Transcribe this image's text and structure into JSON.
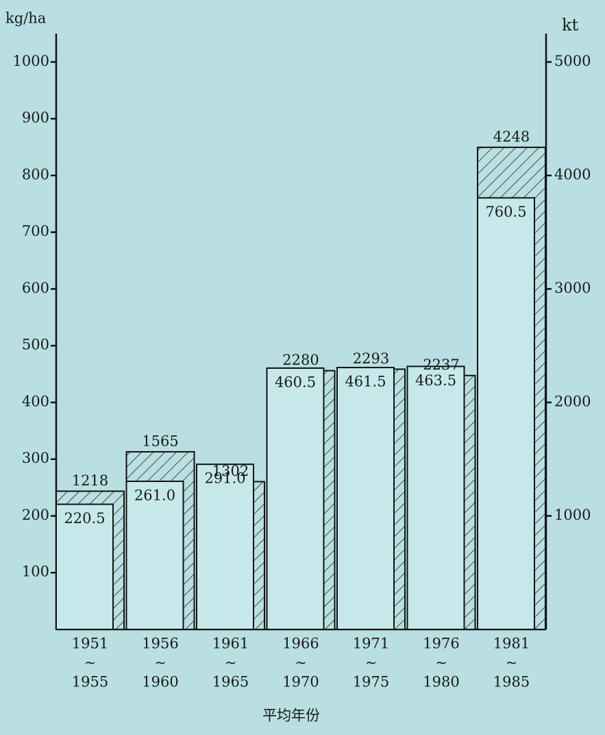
{
  "chart_data": {
    "type": "bar",
    "y_label": "kg/ha",
    "y2_label": "kt",
    "x_label": "平均年份",
    "categories": [
      [
        "1951",
        "~",
        "1955"
      ],
      [
        "1956",
        "~",
        "1960"
      ],
      [
        "1961",
        "~",
        "1965"
      ],
      [
        "1966",
        "~",
        "1970"
      ],
      [
        "1971",
        "~",
        "1975"
      ],
      [
        "1976",
        "~",
        "1980"
      ],
      [
        "1981",
        "~",
        "1985"
      ]
    ],
    "series": [
      {
        "color": "#c6e8eb",
        "values": [
          220.5,
          261.0,
          291.0,
          460.5,
          461.5,
          463.5,
          760.5
        ],
        "value_labels": [
          "220.5",
          "261.0",
          "291.0",
          "460.5",
          "461.5",
          "463.5",
          "760.5"
        ]
      },
      {
        "color": "#222222",
        "axis": "y2",
        "values": [
          1218,
          1565,
          1302,
          2280,
          2293,
          2237,
          4248
        ]
      }
    ],
    "ylim": [
      0,
      1050
    ],
    "yticks": [
      100,
      200,
      300,
      400,
      500,
      600,
      700,
      800,
      900,
      1000
    ],
    "y2lim": [
      0,
      5250
    ],
    "y2ticks": [
      1000,
      2000,
      3000,
      4000,
      5000
    ]
  }
}
